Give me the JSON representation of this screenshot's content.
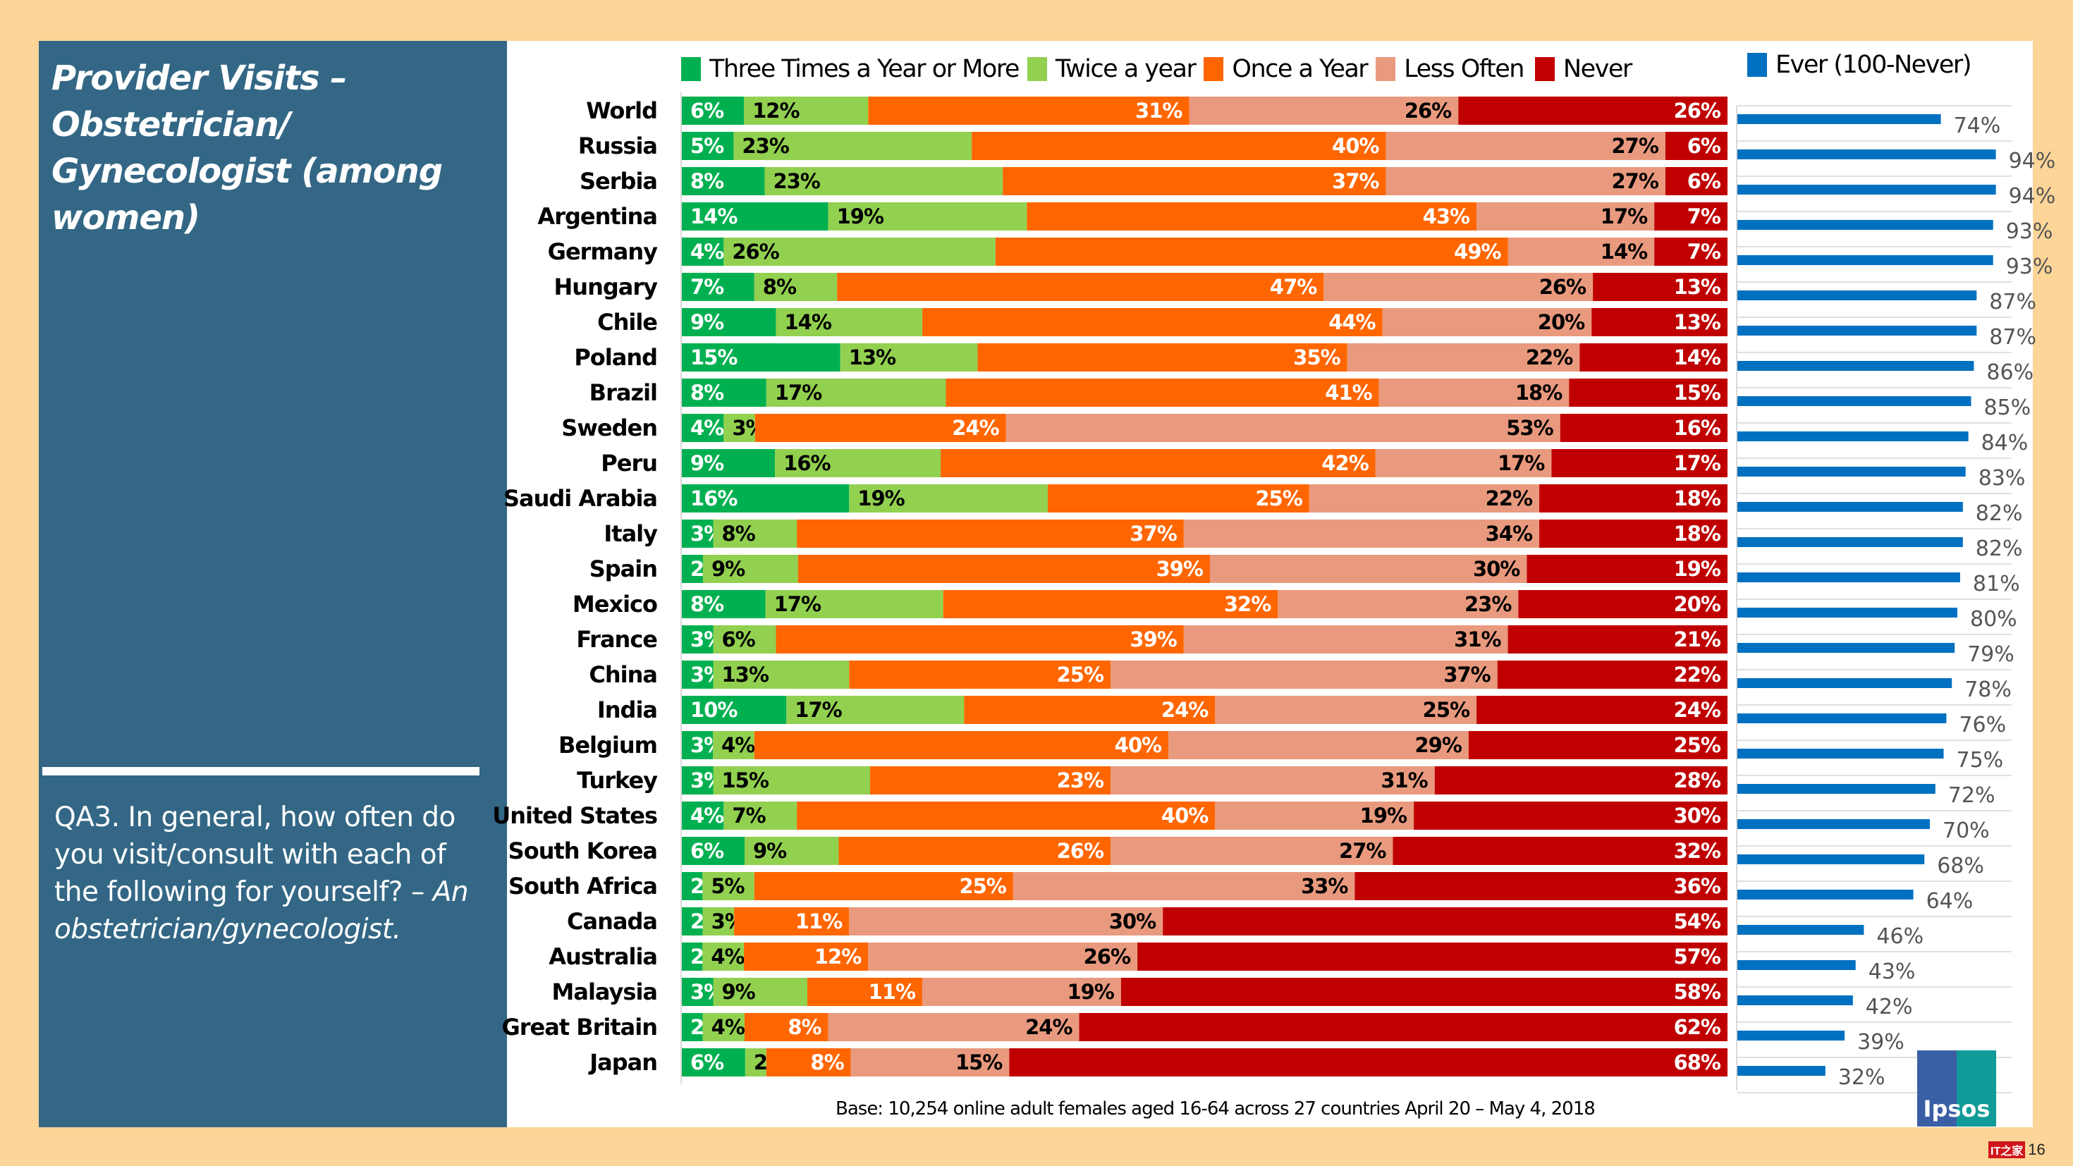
{
  "slide": {
    "title": "Provider Visits – Obstetrician/ Gynecologist (among women)",
    "question_plain": "QA3. In general, how often do you visit/consult with each of the following for yourself? – ",
    "question_italic": "An obstetrician/gynecologist.",
    "footnote": "Base: 10,254 online adult females aged 16-64 across 27 countries  April 20 – May 4, 2018",
    "logo_text": "Ipsos",
    "watermark_text": "IT之家",
    "page_number": "16"
  },
  "legend": {
    "ever_label": "Ever (100-Never)",
    "ever_color": "#0070c0"
  },
  "chart_data": [
    {
      "type": "bar",
      "orientation": "horizontal",
      "stacked": true,
      "title": "Provider Visits – Obstetrician/ Gynecologist (among women)",
      "xlabel": "",
      "ylabel": "",
      "xlim": [
        0,
        100
      ],
      "unit": "%",
      "legend_position": "top",
      "categories": [
        "World",
        "Russia",
        "Serbia",
        "Argentina",
        "Germany",
        "Hungary",
        "Chile",
        "Poland",
        "Brazil",
        "Sweden",
        "Peru",
        "Saudi Arabia",
        "Italy",
        "Spain",
        "Mexico",
        "France",
        "China",
        "India",
        "Belgium",
        "Turkey",
        "United States",
        "South Korea",
        "South Africa",
        "Canada",
        "Australia",
        "Malaysia",
        "Great Britain",
        "Japan"
      ],
      "series": [
        {
          "name": "Three Times a Year or More",
          "color": "#00b050",
          "label_color": "#ffffff",
          "values": [
            6,
            5,
            8,
            14,
            4,
            7,
            9,
            15,
            8,
            4,
            9,
            16,
            3,
            2,
            8,
            3,
            3,
            10,
            3,
            3,
            4,
            6,
            2,
            2,
            2,
            3,
            2,
            6
          ]
        },
        {
          "name": "Twice a year",
          "color": "#92d050",
          "label_color": "#000000",
          "values": [
            12,
            23,
            23,
            19,
            26,
            8,
            14,
            13,
            17,
            3,
            16,
            19,
            8,
            9,
            17,
            6,
            13,
            17,
            4,
            15,
            7,
            9,
            5,
            3,
            4,
            9,
            4,
            2
          ]
        },
        {
          "name": "Once a Year",
          "color": "#ff6600",
          "label_color": "#ffffff",
          "values": [
            31,
            40,
            37,
            43,
            49,
            47,
            44,
            35,
            41,
            24,
            42,
            25,
            37,
            39,
            32,
            39,
            25,
            24,
            40,
            23,
            40,
            26,
            25,
            11,
            12,
            11,
            8,
            8
          ]
        },
        {
          "name": "Less Often",
          "color": "#e99a7e",
          "label_color": "#000000",
          "values": [
            26,
            27,
            27,
            17,
            14,
            26,
            20,
            22,
            18,
            53,
            17,
            22,
            34,
            30,
            23,
            31,
            37,
            25,
            29,
            31,
            19,
            27,
            33,
            30,
            26,
            19,
            24,
            15
          ]
        },
        {
          "name": "Never",
          "color": "#c00000",
          "label_color": "#ffffff",
          "values": [
            26,
            6,
            6,
            7,
            7,
            13,
            13,
            14,
            15,
            16,
            17,
            18,
            18,
            19,
            20,
            21,
            22,
            24,
            25,
            28,
            30,
            32,
            36,
            54,
            57,
            58,
            62,
            68
          ]
        }
      ]
    },
    {
      "type": "bar",
      "orientation": "horizontal",
      "title": "Ever (100-Never)",
      "xlim": [
        0,
        100
      ],
      "unit": "%",
      "grid": true,
      "categories": [
        "World",
        "Russia",
        "Serbia",
        "Argentina",
        "Germany",
        "Hungary",
        "Chile",
        "Poland",
        "Brazil",
        "Sweden",
        "Peru",
        "Saudi Arabia",
        "Italy",
        "Spain",
        "Mexico",
        "France",
        "China",
        "India",
        "Belgium",
        "Turkey",
        "United States",
        "South Korea",
        "South Africa",
        "Canada",
        "Australia",
        "Malaysia",
        "Great Britain",
        "Japan"
      ],
      "series": [
        {
          "name": "Ever (100-Never)",
          "color": "#0070c0",
          "values": [
            74,
            94,
            94,
            93,
            93,
            87,
            87,
            86,
            85,
            84,
            83,
            82,
            82,
            81,
            80,
            79,
            78,
            76,
            75,
            72,
            70,
            68,
            64,
            46,
            43,
            42,
            39,
            32
          ]
        }
      ]
    }
  ]
}
